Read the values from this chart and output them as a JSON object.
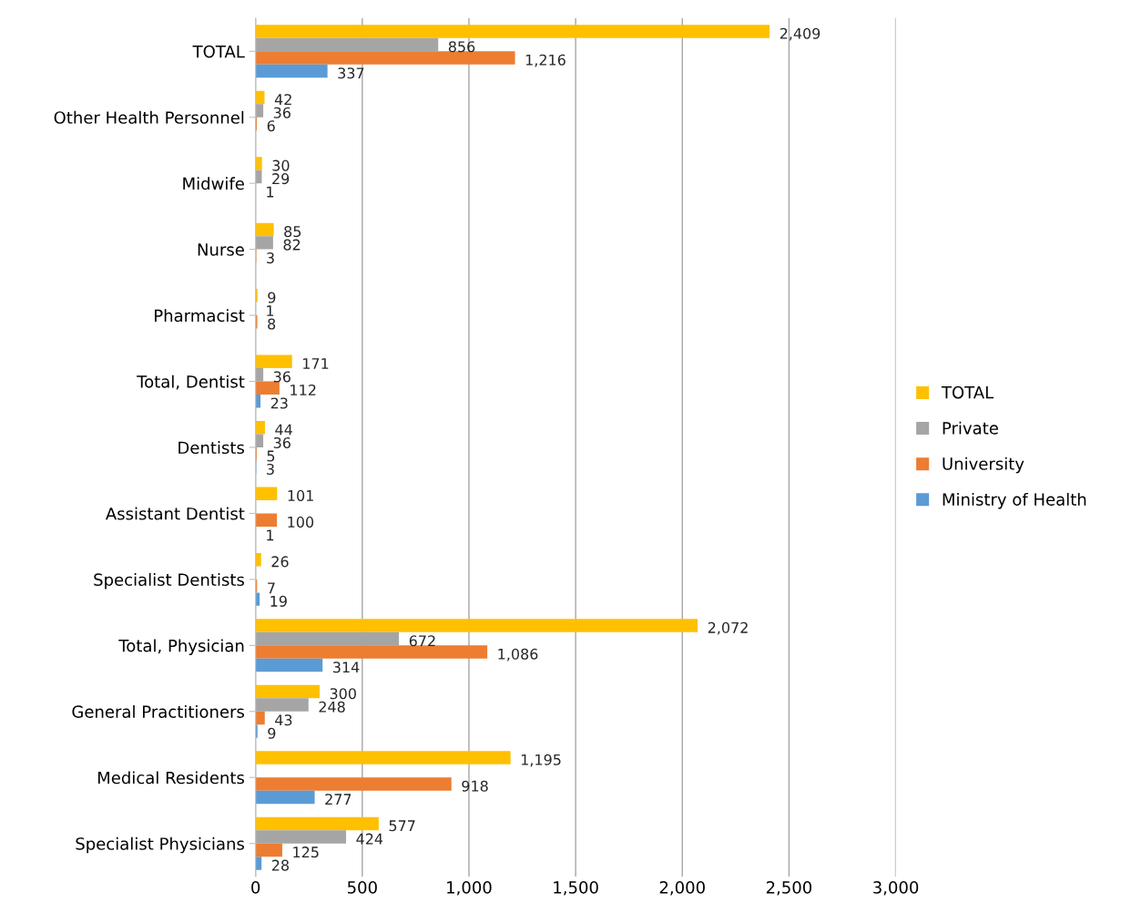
{
  "chart_data": {
    "type": "bar",
    "orientation": "horizontal",
    "categories": [
      "TOTAL",
      "Other Health Personnel",
      "Midwife",
      "Nurse",
      "Pharmacist",
      "Total, Dentist",
      "Dentists",
      "Assistant Dentist",
      "Specialist Dentists",
      "Total, Physician",
      "General Practitioners",
      "Medical Residents",
      "Specialist Physicians"
    ],
    "series": [
      {
        "name": "TOTAL",
        "color": "#ffc000",
        "values": [
          2409,
          42,
          30,
          85,
          9,
          171,
          44,
          101,
          26,
          2072,
          300,
          1195,
          577
        ],
        "value_labels": [
          "2,409",
          "42",
          "30",
          "85",
          "9",
          "171",
          "44",
          "101",
          "26",
          "2,072",
          "300",
          "1,195",
          "577"
        ]
      },
      {
        "name": "Private",
        "color": "#a5a5a5",
        "values": [
          856,
          36,
          29,
          82,
          1,
          36,
          36,
          null,
          null,
          672,
          248,
          null,
          424
        ],
        "value_labels": [
          "856",
          "36",
          "29",
          "82",
          "1",
          "36",
          "36",
          null,
          null,
          "672",
          "248",
          null,
          "424"
        ]
      },
      {
        "name": "University",
        "color": "#ed7d31",
        "values": [
          1216,
          6,
          1,
          3,
          8,
          112,
          5,
          100,
          7,
          1086,
          43,
          918,
          125
        ],
        "value_labels": [
          "1,216",
          "6",
          "1",
          "3",
          "8",
          "112",
          "5",
          "100",
          "7",
          "1,086",
          "43",
          "918",
          "125"
        ]
      },
      {
        "name": "Ministry of Health",
        "color": "#5b9bd5",
        "values": [
          337,
          null,
          null,
          null,
          null,
          23,
          3,
          1,
          19,
          314,
          9,
          277,
          28
        ],
        "value_labels": [
          "337",
          null,
          null,
          null,
          null,
          "23",
          "3",
          "1",
          "19",
          "314",
          "9",
          "277",
          "28"
        ]
      }
    ],
    "xlim": [
      0,
      3000
    ],
    "xticks": [
      {
        "value": 0,
        "label": "0"
      },
      {
        "value": 500,
        "label": "500"
      },
      {
        "value": 1000,
        "label": "1,000"
      },
      {
        "value": 1500,
        "label": "1,500"
      },
      {
        "value": 2000,
        "label": "2,000"
      },
      {
        "value": 2500,
        "label": "2,500"
      },
      {
        "value": 3000,
        "label": "3,000"
      }
    ],
    "grid": "x",
    "legend": "right"
  }
}
